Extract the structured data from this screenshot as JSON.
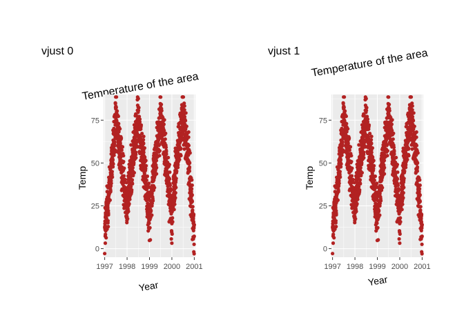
{
  "figure": {
    "panels": [
      {
        "tag": "vjust 0",
        "chart_data": {
          "type": "scatter",
          "title": "Temperature of the area",
          "title_rotation_deg": 10,
          "title_vjust": 0,
          "xlabel": "Year",
          "ylabel": "Temp",
          "xlim": [
            1996.95,
            2001.05
          ],
          "ylim": [
            -5,
            90
          ],
          "x_ticks": [
            1997,
            1998,
            1999,
            2000,
            2001
          ],
          "x_tick_labels": [
            "1997",
            "1998",
            "1999",
            "2000",
            "2001"
          ],
          "y_ticks": [
            0,
            25,
            50,
            75
          ],
          "y_tick_labels": [
            "0",
            "25",
            "50",
            "75"
          ],
          "point_color": "#B22222",
          "panel_background": "#EBEBEB",
          "grid": true,
          "series": [
            {
              "description": "Daily temperature, seasonal cycle (approx. 1,461 points rendered from this envelope)",
              "x": [
                1997.0,
                1997.25,
                1997.5,
                1997.75,
                1998.0,
                1998.25,
                1998.5,
                1998.75,
                1999.0,
                1999.25,
                1999.5,
                1999.75,
                2000.0,
                2000.25,
                2000.5,
                2000.75,
                2001.0
              ],
              "y": [
                10,
                40,
                76,
                50,
                25,
                52,
                76,
                48,
                18,
                52,
                78,
                50,
                20,
                55,
                78,
                50,
                8
              ]
            }
          ]
        }
      },
      {
        "tag": "vjust 1",
        "chart_data": {
          "type": "scatter",
          "title": "Temperature of the area",
          "title_rotation_deg": 10,
          "title_vjust": 1,
          "xlabel": "Year",
          "ylabel": "Temp",
          "xlim": [
            1996.95,
            2001.05
          ],
          "ylim": [
            -5,
            90
          ],
          "x_ticks": [
            1997,
            1998,
            1999,
            2000,
            2001
          ],
          "x_tick_labels": [
            "1997",
            "1998",
            "1999",
            "2000",
            "2001"
          ],
          "y_ticks": [
            0,
            25,
            50,
            75
          ],
          "y_tick_labels": [
            "0",
            "25",
            "50",
            "75"
          ],
          "point_color": "#B22222",
          "panel_background": "#EBEBEB",
          "grid": true,
          "series": [
            {
              "description": "Daily temperature, seasonal cycle (same data as left panel)",
              "x": [
                1997.0,
                1997.25,
                1997.5,
                1997.75,
                1998.0,
                1998.25,
                1998.5,
                1998.75,
                1999.0,
                1999.25,
                1999.5,
                1999.75,
                2000.0,
                2000.25,
                2000.5,
                2000.75,
                2001.0
              ],
              "y": [
                10,
                40,
                76,
                50,
                25,
                52,
                76,
                48,
                18,
                52,
                78,
                50,
                20,
                55,
                78,
                50,
                8
              ]
            }
          ]
        }
      }
    ]
  }
}
